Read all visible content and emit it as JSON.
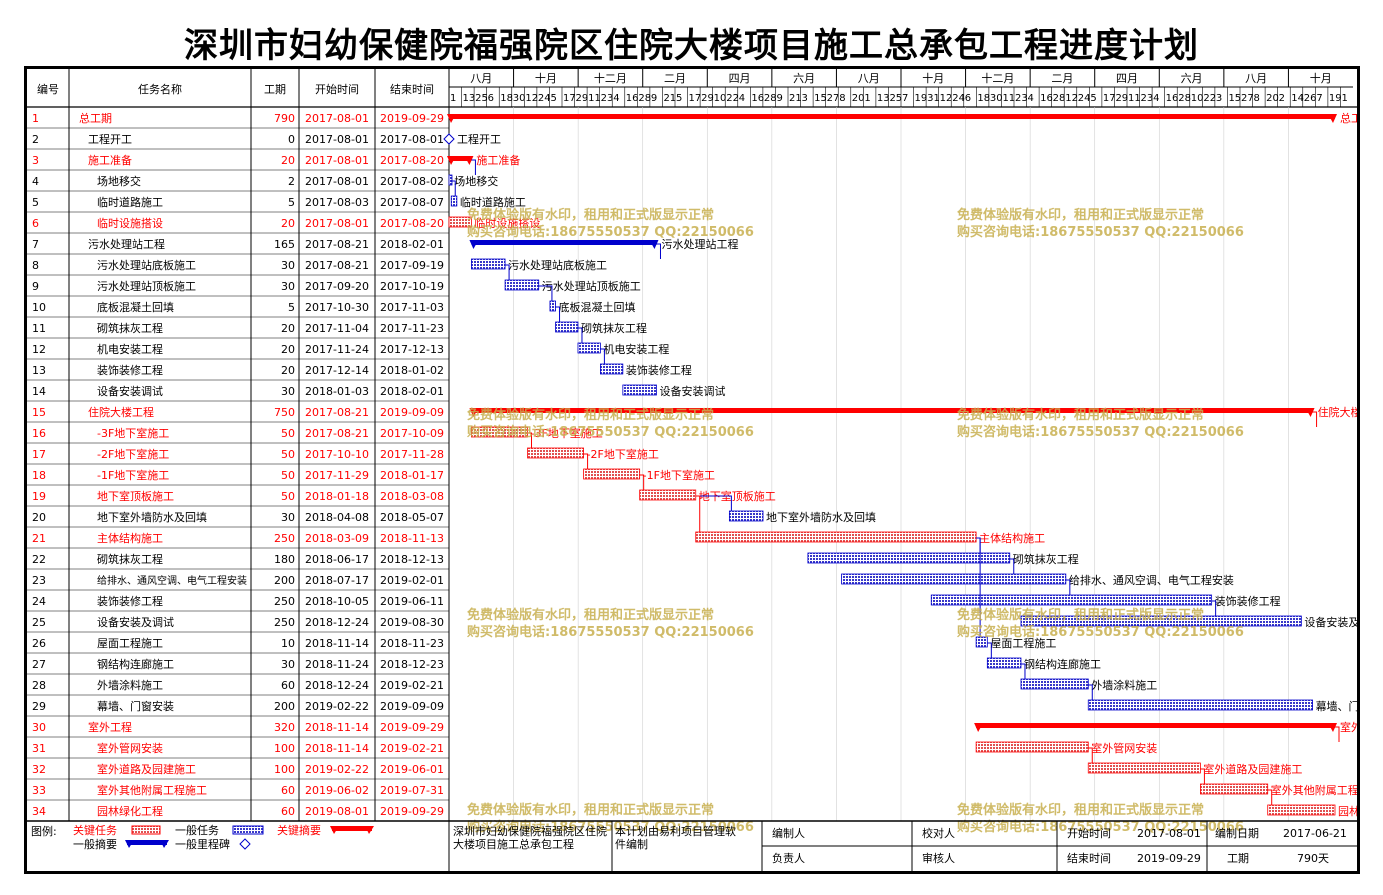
{
  "title": "深圳市妇幼保健院福强院区住院大楼项目施工总承包工程进度计划",
  "headers": {
    "id": "编号",
    "name": "任务名称",
    "dur": "工期",
    "start": "开始时间",
    "end": "结束时间"
  },
  "months": [
    "八月",
    "十月",
    "十二月",
    "二月",
    "四月",
    "六月",
    "八月",
    "十月",
    "十二月",
    "二月",
    "四月",
    "六月",
    "八月",
    "十月"
  ],
  "day_ticks": [
    "1",
    "13",
    "25",
    "6",
    "18",
    "30",
    "12",
    "24",
    "5",
    "17",
    "29",
    "11",
    "23",
    "4",
    "16",
    "28",
    "9",
    "21",
    "5",
    "17",
    "29",
    "10",
    "22",
    "4",
    "16",
    "28",
    "9",
    "21",
    "3",
    "15",
    "27",
    "8",
    "20",
    "1",
    "13",
    "25",
    "7",
    "19",
    "31",
    "12",
    "24",
    "6",
    "18",
    "30",
    "11",
    "23",
    "4",
    "16",
    "28",
    "12",
    "24",
    "5",
    "17",
    "29",
    "11",
    "23",
    "4",
    "16",
    "28",
    "10",
    "22",
    "3",
    "15",
    "27",
    "8",
    "20",
    "2",
    "14",
    "26",
    "7",
    "19",
    "1"
  ],
  "colors": {
    "critical": "#ff0000",
    "normal": "#0000cc",
    "critical_fill": "#e05050",
    "normal_fill": "#3838c8",
    "watermark": "#c8b050"
  },
  "tasks": [
    {
      "id": "1",
      "name": "总工期",
      "dur": "790",
      "start": "2017-08-01",
      "end": "2019-09-29",
      "label": "总工期",
      "type": "summary",
      "critical": true,
      "s": 0,
      "e": 790,
      "level": 0
    },
    {
      "id": "2",
      "name": "工程开工",
      "dur": "0",
      "start": "2017-08-01",
      "end": "2017-08-01",
      "label": "工程开工",
      "type": "milestone",
      "critical": false,
      "s": 0,
      "e": 0,
      "level": 1
    },
    {
      "id": "3",
      "name": "施工准备",
      "dur": "20",
      "start": "2017-08-01",
      "end": "2017-08-20",
      "label": "施工准备",
      "type": "summary",
      "critical": true,
      "s": 0,
      "e": 20,
      "level": 1
    },
    {
      "id": "4",
      "name": "场地移交",
      "dur": "2",
      "start": "2017-08-01",
      "end": "2017-08-02",
      "label": "场地移交",
      "type": "task",
      "critical": false,
      "s": 0,
      "e": 2,
      "level": 2
    },
    {
      "id": "5",
      "name": "临时道路施工",
      "dur": "5",
      "start": "2017-08-03",
      "end": "2017-08-07",
      "label": "临时道路施工",
      "type": "task",
      "critical": false,
      "s": 2,
      "e": 7,
      "level": 2
    },
    {
      "id": "6",
      "name": "临时设施搭设",
      "dur": "20",
      "start": "2017-08-01",
      "end": "2017-08-20",
      "label": "临时设施搭设",
      "type": "task",
      "critical": true,
      "s": 0,
      "e": 20,
      "level": 2
    },
    {
      "id": "7",
      "name": "污水处理站工程",
      "dur": "165",
      "start": "2017-08-21",
      "end": "2018-02-01",
      "label": "污水处理站工程",
      "type": "summary",
      "critical": false,
      "s": 20,
      "e": 185,
      "level": 1
    },
    {
      "id": "8",
      "name": "污水处理站底板施工",
      "dur": "30",
      "start": "2017-08-21",
      "end": "2017-09-19",
      "label": "污水处理站底板施工",
      "type": "task",
      "critical": false,
      "s": 20,
      "e": 50,
      "level": 2
    },
    {
      "id": "9",
      "name": "污水处理站顶板施工",
      "dur": "30",
      "start": "2017-09-20",
      "end": "2017-10-19",
      "label": "污水处理站顶板施工",
      "type": "task",
      "critical": false,
      "s": 50,
      "e": 80,
      "level": 2
    },
    {
      "id": "10",
      "name": "底板混凝土回填",
      "dur": "5",
      "start": "2017-10-30",
      "end": "2017-11-03",
      "label": "底板混凝土回填",
      "type": "task",
      "critical": false,
      "s": 90,
      "e": 95,
      "level": 2
    },
    {
      "id": "11",
      "name": "砌筑抹灰工程",
      "dur": "20",
      "start": "2017-11-04",
      "end": "2017-11-23",
      "label": "砌筑抹灰工程",
      "type": "task",
      "critical": false,
      "s": 95,
      "e": 115,
      "level": 2
    },
    {
      "id": "12",
      "name": "机电安装工程",
      "dur": "20",
      "start": "2017-11-24",
      "end": "2017-12-13",
      "label": "机电安装工程",
      "type": "task",
      "critical": false,
      "s": 115,
      "e": 135,
      "level": 2
    },
    {
      "id": "13",
      "name": "装饰装修工程",
      "dur": "20",
      "start": "2017-12-14",
      "end": "2018-01-02",
      "label": "装饰装修工程",
      "type": "task",
      "critical": false,
      "s": 135,
      "e": 155,
      "level": 2
    },
    {
      "id": "14",
      "name": "设备安装调试",
      "dur": "30",
      "start": "2018-01-03",
      "end": "2018-02-01",
      "label": "设备安装调试",
      "type": "task",
      "critical": false,
      "s": 155,
      "e": 185,
      "level": 2
    },
    {
      "id": "15",
      "name": "住院大楼工程",
      "dur": "750",
      "start": "2017-08-21",
      "end": "2019-09-09",
      "label": "住院大楼工程",
      "type": "summary",
      "critical": true,
      "s": 20,
      "e": 770,
      "level": 1
    },
    {
      "id": "16",
      "name": "-3F地下室施工",
      "dur": "50",
      "start": "2017-08-21",
      "end": "2017-10-09",
      "label": "-3F地下室施工",
      "type": "task",
      "critical": true,
      "s": 20,
      "e": 70,
      "level": 2
    },
    {
      "id": "17",
      "name": "-2F地下室施工",
      "dur": "50",
      "start": "2017-10-10",
      "end": "2017-11-28",
      "label": "-2F地下室施工",
      "type": "task",
      "critical": true,
      "s": 70,
      "e": 120,
      "level": 2
    },
    {
      "id": "18",
      "name": "-1F地下室施工",
      "dur": "50",
      "start": "2017-11-29",
      "end": "2018-01-17",
      "label": "-1F地下室施工",
      "type": "task",
      "critical": true,
      "s": 120,
      "e": 170,
      "level": 2
    },
    {
      "id": "19",
      "name": "地下室顶板施工",
      "dur": "50",
      "start": "2018-01-18",
      "end": "2018-03-08",
      "label": "地下室顶板施工",
      "type": "task",
      "critical": true,
      "s": 170,
      "e": 220,
      "level": 2
    },
    {
      "id": "20",
      "name": "地下室外墙防水及回填",
      "dur": "30",
      "start": "2018-04-08",
      "end": "2018-05-07",
      "label": "地下室外墙防水及回填",
      "type": "task",
      "critical": false,
      "s": 250,
      "e": 280,
      "level": 2
    },
    {
      "id": "21",
      "name": "主体结构施工",
      "dur": "250",
      "start": "2018-03-09",
      "end": "2018-11-13",
      "label": "主体结构施工",
      "type": "task",
      "critical": true,
      "s": 220,
      "e": 470,
      "level": 2
    },
    {
      "id": "22",
      "name": "砌筑抹灰工程",
      "dur": "180",
      "start": "2018-06-17",
      "end": "2018-12-13",
      "label": "砌筑抹灰工程",
      "type": "task",
      "critical": false,
      "s": 320,
      "e": 500,
      "level": 2
    },
    {
      "id": "23",
      "name": "给排水、通风空调、电气工程安装",
      "dur": "200",
      "start": "2018-07-17",
      "end": "2019-02-01",
      "label": "给排水、通风空调、电气工程安装",
      "type": "task",
      "critical": false,
      "s": 350,
      "e": 550,
      "level": 2
    },
    {
      "id": "24",
      "name": "装饰装修工程",
      "dur": "250",
      "start": "2018-10-05",
      "end": "2019-06-11",
      "label": "装饰装修工程",
      "type": "task",
      "critical": false,
      "s": 430,
      "e": 680,
      "level": 2
    },
    {
      "id": "25",
      "name": "设备安装及调试",
      "dur": "250",
      "start": "2018-12-24",
      "end": "2019-08-30",
      "label": "设备安装及调试",
      "type": "task",
      "critical": false,
      "s": 510,
      "e": 760,
      "level": 2
    },
    {
      "id": "26",
      "name": "屋面工程施工",
      "dur": "10",
      "start": "2018-11-14",
      "end": "2018-11-23",
      "label": "屋面工程施工",
      "type": "task",
      "critical": false,
      "s": 470,
      "e": 480,
      "level": 2
    },
    {
      "id": "27",
      "name": "钢结构连廊施工",
      "dur": "30",
      "start": "2018-11-24",
      "end": "2018-12-23",
      "label": "钢结构连廊施工",
      "type": "task",
      "critical": false,
      "s": 480,
      "e": 510,
      "level": 2
    },
    {
      "id": "28",
      "name": "外墙涂料施工",
      "dur": "60",
      "start": "2018-12-24",
      "end": "2019-02-21",
      "label": "外墙涂料施工",
      "type": "task",
      "critical": false,
      "s": 510,
      "e": 570,
      "level": 2
    },
    {
      "id": "29",
      "name": "幕墙、门窗安装",
      "dur": "200",
      "start": "2019-02-22",
      "end": "2019-09-09",
      "label": "幕墙、门窗安装",
      "type": "task",
      "critical": false,
      "s": 570,
      "e": 770,
      "level": 2
    },
    {
      "id": "30",
      "name": "室外工程",
      "dur": "320",
      "start": "2018-11-14",
      "end": "2019-09-29",
      "label": "室外工程",
      "type": "summary",
      "critical": true,
      "s": 470,
      "e": 790,
      "level": 1
    },
    {
      "id": "31",
      "name": "室外管网安装",
      "dur": "100",
      "start": "2018-11-14",
      "end": "2019-02-21",
      "label": "室外管网安装",
      "type": "task",
      "critical": true,
      "s": 470,
      "e": 570,
      "level": 2
    },
    {
      "id": "32",
      "name": "室外道路及园建施工",
      "dur": "100",
      "start": "2019-02-22",
      "end": "2019-06-01",
      "label": "室外道路及园建施工",
      "type": "task",
      "critical": true,
      "s": 570,
      "e": 670,
      "level": 2
    },
    {
      "id": "33",
      "name": "室外其他附属工程施工",
      "dur": "60",
      "start": "2019-06-02",
      "end": "2019-07-31",
      "label": "室外其他附属工程施工",
      "type": "task",
      "critical": true,
      "s": 670,
      "e": 730,
      "level": 2
    },
    {
      "id": "34",
      "name": "园林绿化工程",
      "dur": "60",
      "start": "2019-08-01",
      "end": "2019-09-29",
      "label": "园林绿化工程",
      "type": "task",
      "critical": true,
      "s": 730,
      "e": 790,
      "level": 2
    }
  ],
  "legend": {
    "title": "图例:",
    "critical_task": "关键任务",
    "normal_task": "一般任务",
    "critical_summary": "关键摘要",
    "normal_summary": "一般摘要",
    "milestone": "一般里程碑"
  },
  "footer": {
    "project": "深圳市妇幼保健院福强院区住院大楼项目施工总承包工程",
    "software": "本计划由易利项目管理软件编制",
    "editor_label": "编制人",
    "checker_label": "校对人",
    "start_label": "开始时间",
    "start_value": "2017-08-01",
    "date_label": "编制日期",
    "date_value": "2017-06-21",
    "owner_label": "负责人",
    "auditor_label": "审核人",
    "end_label": "结束时间",
    "end_value": "2019-09-29",
    "dur_label": "工期",
    "dur_value": "790天"
  },
  "watermark": {
    "line1": "免费体验版有水印，租用和正式版显示正常",
    "line2": "购买咨询电话:18675550537 QQ:22150066"
  }
}
